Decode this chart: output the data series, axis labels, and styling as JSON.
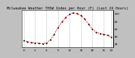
{
  "title": "Milwaukee Weather THSW Index per Hour (F) (Last 24 Hours)",
  "bg_color": "#c0c0c0",
  "plot_bg_color": "#ffffff",
  "line_color": "#ff0000",
  "marker_color": "#000000",
  "grid_color": "#aaaaaa",
  "text_color": "#000000",
  "ylim": [
    10,
    110
  ],
  "yticks": [
    20,
    40,
    60,
    80,
    100
  ],
  "hours": [
    0,
    1,
    2,
    3,
    4,
    5,
    6,
    7,
    8,
    9,
    10,
    11,
    12,
    13,
    14,
    15,
    16,
    17,
    18,
    19,
    20,
    21,
    22,
    23
  ],
  "values": [
    28,
    25,
    23,
    22,
    21,
    20,
    22,
    30,
    45,
    62,
    78,
    90,
    98,
    102,
    100,
    95,
    85,
    72,
    58,
    50,
    47,
    45,
    42,
    38
  ],
  "title_fontsize": 3.8,
  "tick_fontsize": 3.0,
  "xtick_positions": [
    0,
    3,
    6,
    9,
    12,
    15,
    18,
    21,
    23
  ],
  "xtick_labels": [
    "0",
    "3",
    "6",
    "9",
    "12",
    "15",
    "18",
    "21",
    "23"
  ]
}
